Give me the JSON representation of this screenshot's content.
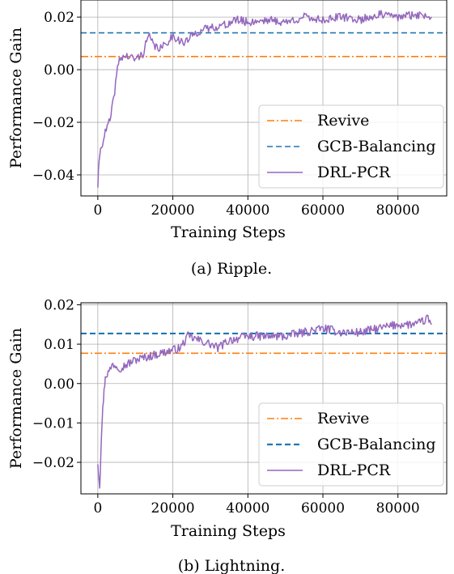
{
  "chart_data": [
    {
      "type": "line",
      "caption": "(a) Ripple.",
      "xlabel": "Training Steps",
      "ylabel": "Performance Gain",
      "xlim": [
        -4500,
        93000
      ],
      "ylim": [
        -0.048,
        0.0265
      ],
      "xticks": [
        0,
        20000,
        40000,
        60000,
        80000
      ],
      "xtick_labels": [
        "0",
        "20000",
        "40000",
        "60000",
        "80000"
      ],
      "yticks": [
        -0.04,
        -0.02,
        0.0,
        0.02
      ],
      "ytick_labels": [
        "−0.04",
        "−0.02",
        "0.00",
        "0.02"
      ],
      "grid": true,
      "legend_position": "lower-right",
      "series": [
        {
          "name": "Revive",
          "style": "dashdot",
          "color": "#ff7f0e",
          "constant": 0.005
        },
        {
          "name": "GCB-Balancing",
          "style": "dashed",
          "color": "#1f77b4",
          "constant": 0.014
        },
        {
          "name": "DRL-PCR",
          "style": "solid",
          "color": "#9467bd",
          "x": [
            0,
            500,
            1500,
            2500,
            3500,
            4500,
            5500,
            6500,
            8000,
            10000,
            12000,
            13500,
            15000,
            17000,
            20000,
            23000,
            26000,
            30000,
            34000,
            37000,
            40000,
            45000,
            50000,
            55000,
            60000,
            65000,
            70000,
            75000,
            80000,
            85000,
            89000
          ],
          "y": [
            -0.044,
            -0.032,
            -0.026,
            -0.022,
            -0.018,
            -0.008,
            0.003,
            0.005,
            0.005,
            0.004,
            0.006,
            0.013,
            0.009,
            0.008,
            0.013,
            0.01,
            0.014,
            0.016,
            0.017,
            0.019,
            0.018,
            0.019,
            0.018,
            0.02,
            0.019,
            0.02,
            0.019,
            0.021,
            0.02,
            0.021,
            0.02
          ]
        }
      ]
    },
    {
      "type": "line",
      "caption": "(b) Lightning.",
      "xlabel": "Training Steps",
      "ylabel": "Performance Gain",
      "xlim": [
        -4500,
        93000
      ],
      "ylim": [
        -0.028,
        0.0205
      ],
      "xticks": [
        0,
        20000,
        40000,
        60000,
        80000
      ],
      "xtick_labels": [
        "0",
        "20000",
        "40000",
        "60000",
        "80000"
      ],
      "yticks": [
        -0.02,
        -0.01,
        0.0,
        0.01,
        0.02
      ],
      "ytick_labels": [
        "−0.02",
        "−0.01",
        "0.00",
        "0.01",
        "0.02"
      ],
      "grid": true,
      "legend_position": "lower-right",
      "series": [
        {
          "name": "Revive",
          "style": "dashdot",
          "color": "#ff7f0e",
          "constant": 0.0077
        },
        {
          "name": "GCB-Balancing",
          "style": "dashed",
          "color": "#1f77b4",
          "constant": 0.0127
        },
        {
          "name": "DRL-PCR",
          "style": "solid",
          "color": "#9467bd",
          "x": [
            0,
            500,
            1000,
            1500,
            2000,
            3000,
            4000,
            6000,
            8000,
            10000,
            14000,
            18000,
            22000,
            24000,
            27000,
            30000,
            32000,
            35000,
            40000,
            45000,
            50000,
            55000,
            60000,
            65000,
            70000,
            75000,
            80000,
            85000,
            88000,
            89000
          ],
          "y": [
            -0.02,
            -0.026,
            -0.012,
            -0.004,
            0.002,
            0.003,
            0.005,
            0.004,
            0.005,
            0.006,
            0.007,
            0.008,
            0.009,
            0.012,
            0.011,
            0.01,
            0.009,
            0.011,
            0.012,
            0.012,
            0.012,
            0.013,
            0.014,
            0.013,
            0.013,
            0.014,
            0.015,
            0.015,
            0.0165,
            0.015
          ]
        }
      ]
    }
  ]
}
